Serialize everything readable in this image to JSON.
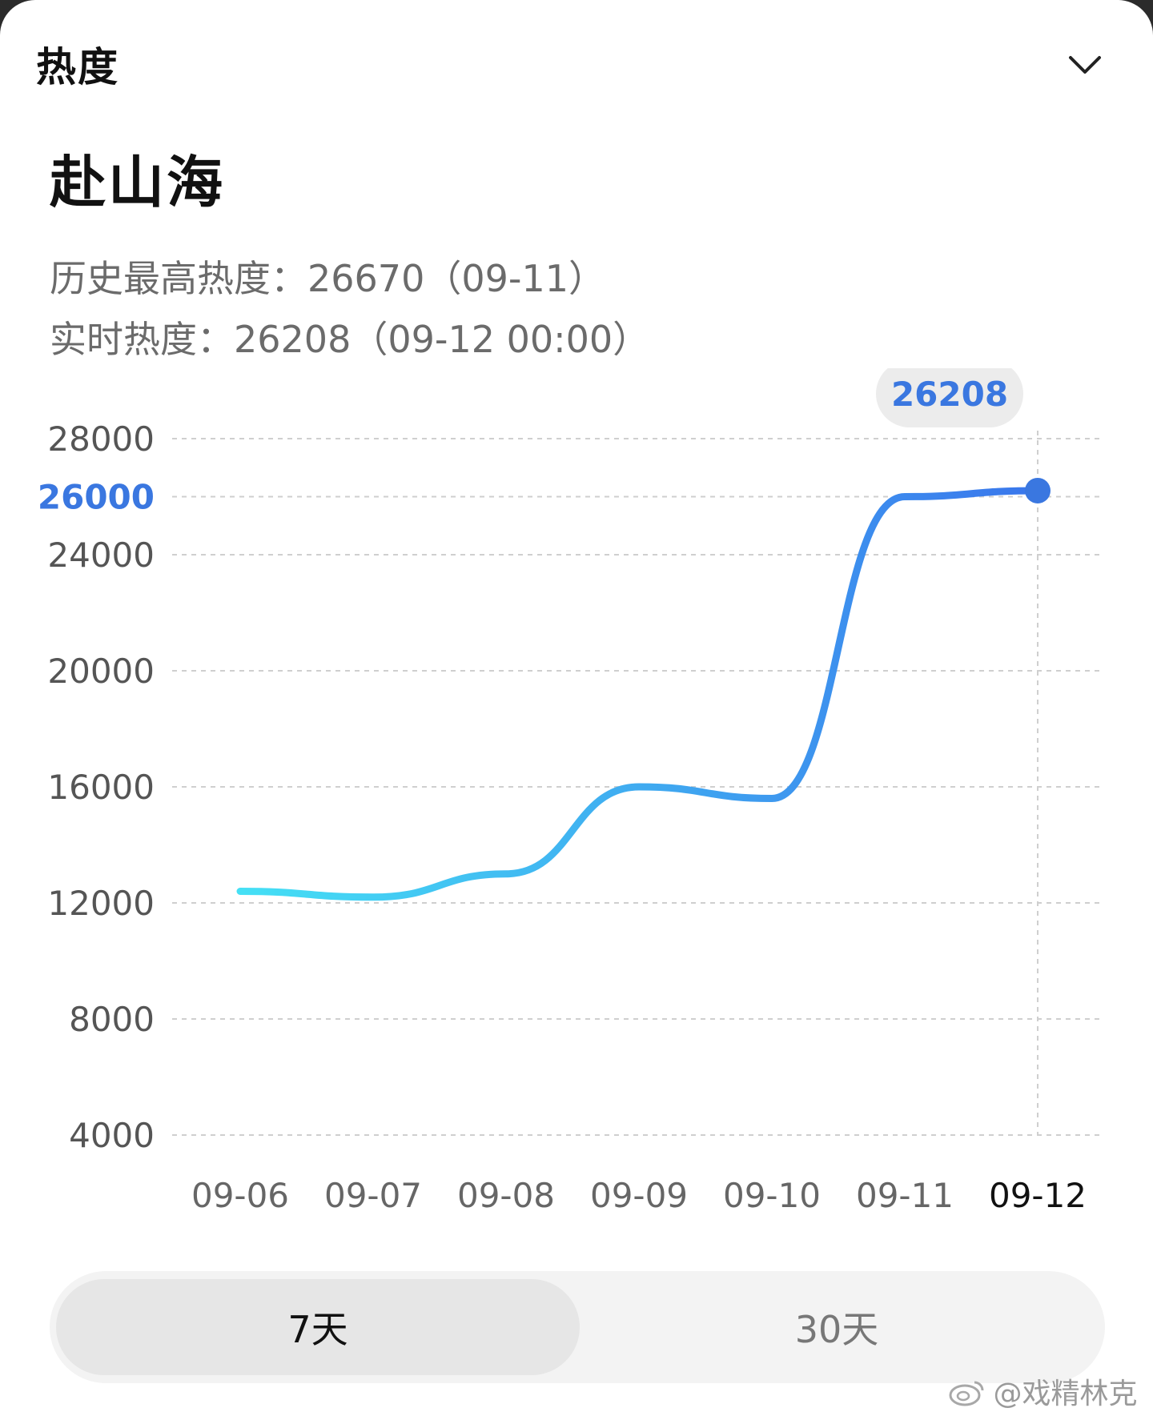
{
  "header": {
    "section_title": "热度",
    "collapse_icon": "chevron-down-icon"
  },
  "topic": {
    "title": "赴山海"
  },
  "stats": {
    "history_high": "历史最高热度：26670（09-11）",
    "realtime": "实时热度：26208（09-12 00:00）"
  },
  "chart_data": {
    "type": "line",
    "x": [
      "09-06",
      "09-07",
      "09-08",
      "09-09",
      "09-10",
      "09-11",
      "09-12"
    ],
    "series": [
      {
        "values": [
          12400,
          12200,
          13000,
          16000,
          15600,
          26000,
          26208
        ]
      }
    ],
    "yticks": [
      4000,
      8000,
      12000,
      16000,
      20000,
      24000,
      26000,
      28000
    ],
    "highlighted_ytick": 26000,
    "selected_x": "09-12",
    "tooltip": "26208",
    "ylim": [
      4000,
      28000
    ],
    "grid": true,
    "colors": {
      "line_start": "#45e0f5",
      "line_end": "#3a76ec",
      "highlight": "#3a77e0"
    }
  },
  "range_tabs": {
    "items": [
      "7天",
      "30天"
    ],
    "selected": "7天"
  },
  "watermark": "@戏精林克",
  "watermark_icon": "weibo-logo-icon"
}
